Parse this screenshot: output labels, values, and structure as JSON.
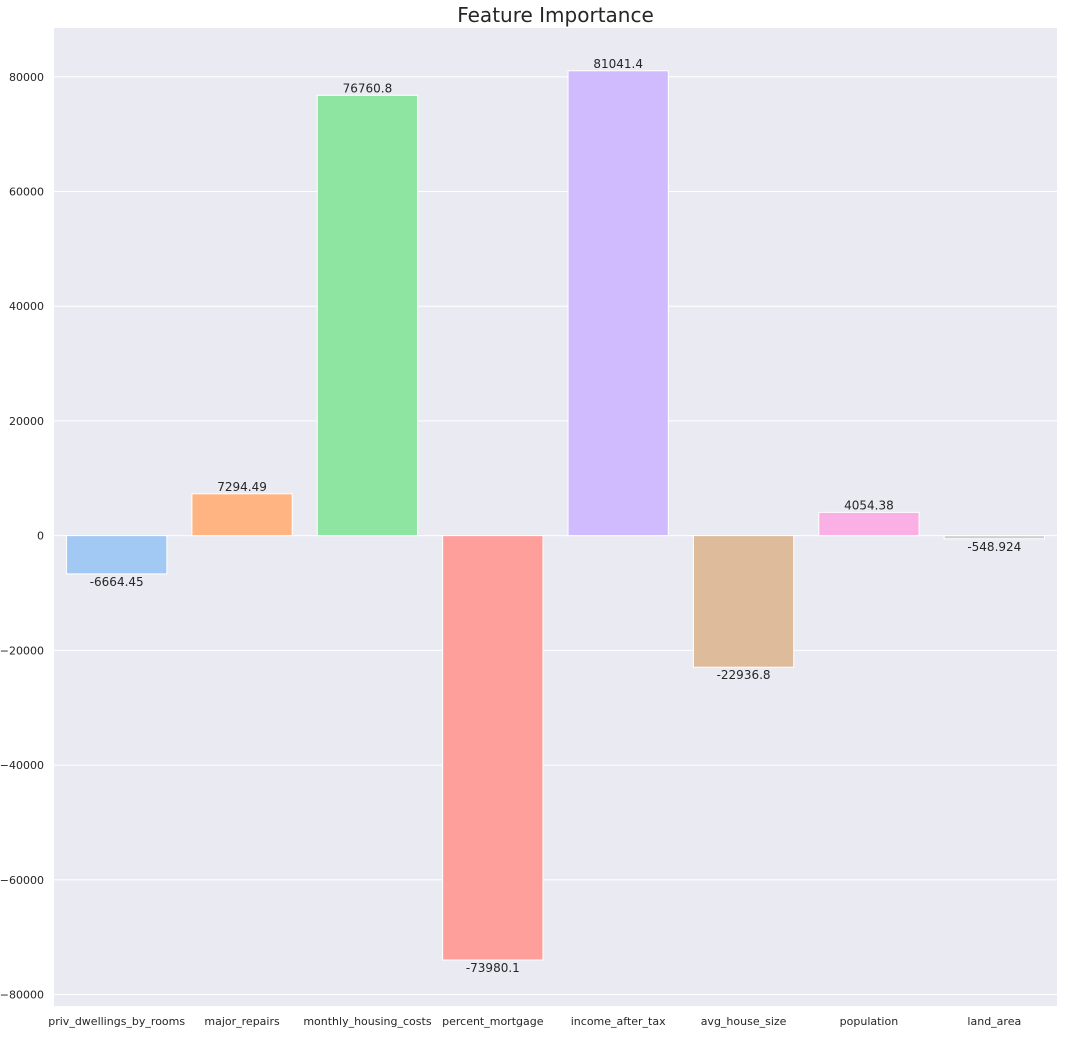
{
  "chart_data": {
    "type": "bar",
    "title": "Feature Importance",
    "xlabel": "",
    "ylabel": "",
    "categories": [
      "priv_dwellings_by_rooms",
      "major_repairs",
      "monthly_housing_costs",
      "percent_mortgage",
      "income_after_tax",
      "avg_house_size",
      "population",
      "land_area"
    ],
    "values": [
      -6664.45,
      7294.49,
      76760.8,
      -73980.1,
      81041.4,
      -22936.8,
      4054.38,
      -548.924
    ],
    "value_labels": [
      "-6664.45",
      "7294.49",
      "76760.8",
      "-73980.1",
      "81041.4",
      "-22936.8",
      "4054.38",
      "-548.924"
    ],
    "ylim": [
      -82000,
      88500
    ],
    "yticks": [
      -80000,
      -60000,
      -40000,
      -20000,
      0,
      20000,
      40000,
      60000,
      80000
    ],
    "ytick_labels": [
      "−80000",
      "−60000",
      "−40000",
      "−20000",
      "0",
      "20000",
      "40000",
      "60000",
      "80000"
    ],
    "grid": true,
    "legend": "none",
    "colors": {
      "background": "#eaeaf2",
      "grid": "#ffffff",
      "bars": [
        "#a1c9f4",
        "#ffb482",
        "#8de5a1",
        "#ff9f9b",
        "#d0bbff",
        "#debb9b",
        "#fab0e4",
        "#cfcfcf"
      ]
    }
  }
}
